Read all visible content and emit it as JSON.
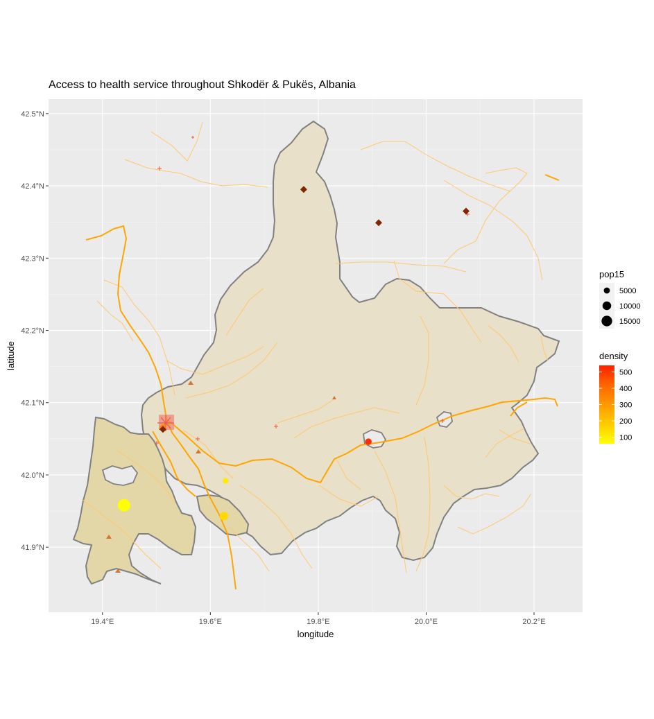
{
  "title": "Access to health service throughout Shkodër & Pukës, Albania",
  "axes": {
    "xlabel": "longitude",
    "ylabel": "latitude",
    "x_ticks": [
      {
        "value": 19.4,
        "label": "19.4°E"
      },
      {
        "value": 19.6,
        "label": "19.6°E"
      },
      {
        "value": 19.8,
        "label": "19.8°E"
      },
      {
        "value": 20.0,
        "label": "20.0°E"
      },
      {
        "value": 20.2,
        "label": "20.2°E"
      }
    ],
    "y_ticks": [
      {
        "value": 41.9,
        "label": "41.9°N"
      },
      {
        "value": 42.0,
        "label": "42.0°N"
      },
      {
        "value": 42.1,
        "label": "42.1°N"
      },
      {
        "value": 42.2,
        "label": "42.2°N"
      },
      {
        "value": 42.3,
        "label": "42.3°N"
      },
      {
        "value": 42.4,
        "label": "42.4°N"
      },
      {
        "value": 42.5,
        "label": "42.5°N"
      }
    ],
    "xlim": [
      19.3,
      20.29
    ],
    "ylim": [
      41.81,
      42.52
    ]
  },
  "legend_pop": {
    "title": "pop15",
    "items": [
      {
        "label": "5000",
        "value": 5000
      },
      {
        "label": "10000",
        "value": 10000
      },
      {
        "label": "15000",
        "value": 15000
      }
    ]
  },
  "legend_density": {
    "title": "density",
    "labels": [
      {
        "label": "500",
        "value": 500
      },
      {
        "label": "400",
        "value": 400
      },
      {
        "label": "300",
        "value": 300
      },
      {
        "label": "200",
        "value": 200
      },
      {
        "label": "100",
        "value": 100
      }
    ],
    "range": [
      60,
      540
    ],
    "colors": [
      "#ffff00",
      "#ffcc00",
      "#ff9900",
      "#ff6600",
      "#ff2000"
    ]
  },
  "colors": {
    "panel": "#ebebeb",
    "grid": "#ffffff",
    "region_fill": "#e8e0c8",
    "region_fill_dark": "#e3d7a8",
    "region_border": "#808080",
    "road_major": "#ffa500",
    "road_minor": "#ffc870",
    "facility": "#7f2704",
    "triangle": "#d2772f",
    "plus": "#ee5a3a"
  },
  "chart_data": {
    "type": "scatter",
    "series": [
      {
        "name": "pop15",
        "points": [
          {
            "lon": 19.44,
            "lat": 41.958,
            "pop15": 15000,
            "density": 60
          },
          {
            "lon": 19.625,
            "lat": 41.943,
            "pop15": 7000,
            "density": 150
          },
          {
            "lon": 19.628,
            "lat": 41.992,
            "pop15": 3000,
            "density": 110
          },
          {
            "lon": 19.893,
            "lat": 42.046,
            "pop15": 4000,
            "density": 520
          },
          {
            "lon": 19.512,
            "lat": 42.065,
            "pop15": 4500,
            "density": 350
          }
        ]
      }
    ],
    "facilities": [
      {
        "lon": 19.773,
        "lat": 42.395
      },
      {
        "lon": 19.912,
        "lat": 42.349
      },
      {
        "lon": 20.074,
        "lat": 42.365
      },
      {
        "lon": 19.512,
        "lat": 42.063
      }
    ]
  }
}
